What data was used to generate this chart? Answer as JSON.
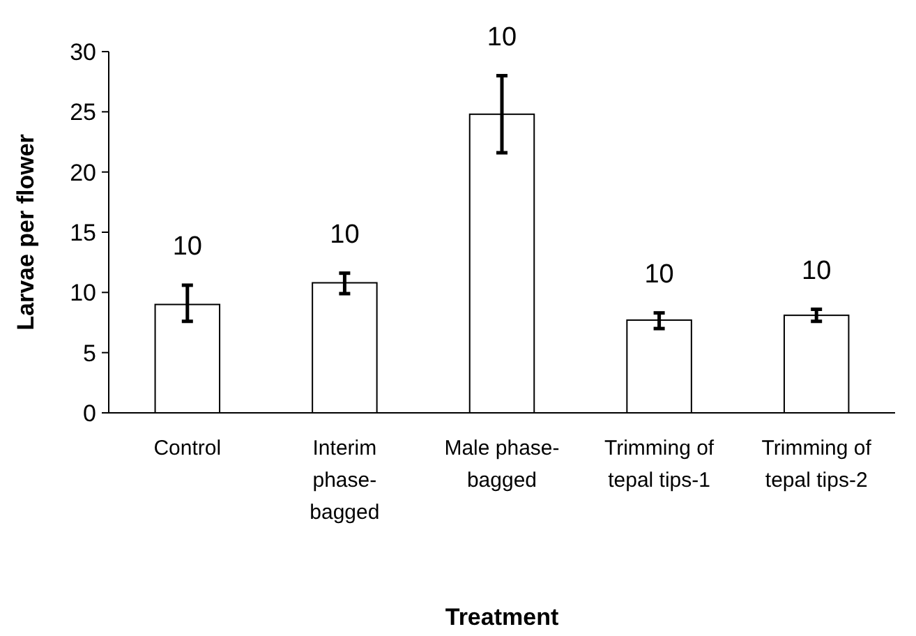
{
  "chart_data": {
    "type": "bar",
    "xlabel": "Treatment",
    "ylabel": "Larvae per flower",
    "categories": [
      "Control",
      "Interim phase-bagged",
      "Male phase-bagged",
      "Trimming of tepal tips-1",
      "Trimming of tepal tips-2"
    ],
    "values": [
      9.0,
      10.8,
      24.8,
      7.7,
      8.1
    ],
    "errors": [
      [
        7.6,
        10.6
      ],
      [
        9.9,
        11.6
      ],
      [
        21.6,
        28.0
      ],
      [
        7.0,
        8.3
      ],
      [
        7.6,
        8.6
      ]
    ],
    "color": "#ffffff",
    "ylim": [
      0,
      30
    ],
    "yticks": [
      0,
      5,
      10,
      15,
      20,
      25,
      30
    ],
    "grid": false,
    "annotations": [
      "10",
      "10",
      "10",
      "10",
      "10"
    ]
  }
}
